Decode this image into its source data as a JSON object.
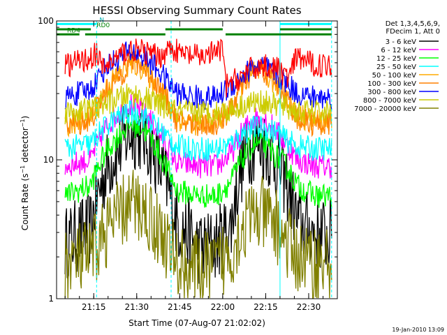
{
  "chart_data": {
    "type": "line",
    "title": "HESSI Observing Summary Count Rates",
    "xlabel": "Start Time (07-Aug-07 21:02:02)",
    "ylabel": "Count Rate (s⁻¹ detector⁻¹)",
    "ylabel_parts": {
      "main": "Count Rate (s",
      "sup1": "−1",
      "mid": " detector",
      "sup2": "−1",
      "end": ")"
    },
    "footer": "19-Jan-2010 13:09",
    "y_scale": "log",
    "ylim": [
      1,
      100
    ],
    "xlim": [
      "21:02:02",
      "22:40:00"
    ],
    "x_ticks": [
      "21:15",
      "21:30",
      "21:45",
      "22:00",
      "22:15",
      "22:30"
    ],
    "y_ticks": [
      "1",
      "10",
      "100"
    ],
    "grid": false,
    "legend_placement": "right",
    "legend_header": [
      "Det 1,3,4,5,6,9,",
      "FDecim 1, Att 0"
    ],
    "series": [
      {
        "name": "3 - 6 keV",
        "color": "#000000",
        "x": [
          "21:05",
          "21:14",
          "21:20",
          "21:25",
          "21:28",
          "21:32",
          "21:36",
          "21:40",
          "21:44",
          "21:52",
          "21:58",
          "22:03",
          "22:08",
          "22:11",
          "22:14",
          "22:18",
          "22:22",
          "22:26",
          "22:32",
          "22:38"
        ],
        "y": [
          2.5,
          3.2,
          9,
          13,
          16,
          15,
          11,
          7,
          3.5,
          2.3,
          2.5,
          3.3,
          11,
          13,
          13,
          10,
          7,
          3.5,
          3.0,
          2.8
        ]
      },
      {
        "name": "6 - 12 keV",
        "color": "#ff00ff",
        "x": [
          "21:05",
          "21:14",
          "21:20",
          "21:25",
          "21:28",
          "21:32",
          "21:36",
          "21:40",
          "21:44",
          "21:52",
          "21:58",
          "22:03",
          "22:08",
          "22:11",
          "22:14",
          "22:18",
          "22:22",
          "22:26",
          "22:32",
          "22:38"
        ],
        "y": [
          9,
          10,
          18,
          23,
          25,
          22,
          18,
          13,
          9.5,
          9,
          9,
          11,
          17,
          20,
          20,
          17,
          13,
          10,
          9,
          9
        ]
      },
      {
        "name": "12 - 25 keV",
        "color": "#00ff00",
        "x": [
          "21:05",
          "21:14",
          "21:20",
          "21:25",
          "21:28",
          "21:32",
          "21:36",
          "21:40",
          "21:44",
          "21:52",
          "21:58",
          "22:03",
          "22:08",
          "22:11",
          "22:14",
          "22:18",
          "22:22",
          "22:26",
          "22:32",
          "22:38"
        ],
        "y": [
          5.5,
          6.5,
          12,
          16,
          18,
          17,
          13,
          9,
          6,
          5.5,
          5.5,
          7,
          11,
          13,
          13,
          11,
          9,
          6.5,
          5.5,
          5.5
        ]
      },
      {
        "name": "25 - 50 keV",
        "color": "#00ffff",
        "x": [
          "21:05",
          "21:14",
          "21:20",
          "21:25",
          "21:28",
          "21:32",
          "21:36",
          "21:40",
          "21:44",
          "21:52",
          "21:58",
          "22:03",
          "22:08",
          "22:11",
          "22:14",
          "22:18",
          "22:22",
          "22:26",
          "22:32",
          "22:38"
        ],
        "y": [
          12,
          13,
          18,
          21,
          22,
          21,
          18,
          15,
          12.5,
          12,
          12,
          13,
          16,
          17,
          17,
          16,
          14,
          12.5,
          12,
          12
        ]
      },
      {
        "name": "50 - 100 keV",
        "color": "#ffaa00",
        "x": [
          "21:05",
          "21:14",
          "21:20",
          "21:25",
          "21:28",
          "21:32",
          "21:36",
          "21:40",
          "21:44",
          "21:52",
          "21:58",
          "22:03",
          "22:08",
          "22:11",
          "22:14",
          "22:18",
          "22:22",
          "22:26",
          "22:32",
          "22:38"
        ],
        "y": [
          18,
          20,
          34,
          44,
          50,
          46,
          36,
          28,
          20,
          18,
          19,
          23,
          38,
          42,
          42,
          36,
          28,
          21,
          19,
          19
        ]
      },
      {
        "name": "100 - 300 keV",
        "color": "#ff8000",
        "x": [
          "21:05",
          "21:14",
          "21:20",
          "21:25",
          "21:28",
          "21:32",
          "21:36",
          "21:40",
          "21:44",
          "21:52",
          "21:58",
          "22:03",
          "22:08",
          "22:11",
          "22:14",
          "22:18",
          "22:22",
          "22:26",
          "22:32",
          "22:38"
        ],
        "y": [
          18,
          19,
          32,
          42,
          52,
          48,
          38,
          28,
          19,
          18,
          18,
          23,
          37,
          43,
          43,
          38,
          28,
          20,
          18,
          18
        ]
      },
      {
        "name": "300 - 800 keV",
        "color": "#0000ff",
        "x": [
          "21:05",
          "21:14",
          "21:20",
          "21:25",
          "21:28",
          "21:32",
          "21:36",
          "21:40",
          "21:44",
          "21:52",
          "21:58",
          "22:03",
          "22:08",
          "22:11",
          "22:14",
          "22:18",
          "22:22",
          "22:26",
          "22:32",
          "22:38"
        ],
        "y": [
          28,
          32,
          48,
          56,
          60,
          56,
          48,
          38,
          30,
          28,
          28,
          34,
          42,
          47,
          47,
          42,
          36,
          30,
          28,
          28
        ]
      },
      {
        "name": "800 - 7000 keV",
        "color": "#cccc00",
        "x": [
          "21:05",
          "21:14",
          "21:20",
          "21:25",
          "21:28",
          "21:32",
          "21:36",
          "21:40",
          "21:44",
          "21:52",
          "21:58",
          "22:03",
          "22:08",
          "22:11",
          "22:14",
          "22:18",
          "22:22",
          "22:26",
          "22:32",
          "22:38"
        ],
        "y": [
          22,
          23,
          26,
          28,
          30,
          28,
          26,
          24,
          22,
          22,
          22,
          23,
          25,
          26,
          26,
          25,
          24,
          22,
          22,
          22
        ]
      },
      {
        "name": "7000 - 20000 keV",
        "color": "#808000",
        "x": [
          "21:05",
          "21:14",
          "21:20",
          "21:25",
          "21:28",
          "21:32",
          "21:36",
          "21:40",
          "21:44",
          "21:52",
          "21:58",
          "22:03",
          "22:08",
          "22:11",
          "22:14",
          "22:18",
          "22:22",
          "22:26",
          "22:32",
          "22:38"
        ],
        "y": [
          1.8,
          2.0,
          3.2,
          4.2,
          4.8,
          4.5,
          3.5,
          2.6,
          1.8,
          1.6,
          1.7,
          2.2,
          3.5,
          4.0,
          4.0,
          3.5,
          2.6,
          2.0,
          1.8,
          1.8
        ]
      },
      {
        "name": "",
        "color": "#ff0000",
        "x": [
          "21:05",
          "21:12",
          "21:16",
          "21:18",
          "21:25",
          "21:28",
          "21:32",
          "21:38",
          "21:42",
          "21:45",
          "21:52",
          "21:58",
          "22:00",
          "22:01",
          "22:05",
          "22:10",
          "22:15",
          "22:20",
          "22:23",
          "22:26",
          "22:32",
          "22:38"
        ],
        "y": [
          48,
          52,
          58,
          45,
          58,
          62,
          60,
          55,
          65,
          58,
          55,
          60,
          62,
          34,
          38,
          45,
          48,
          44,
          38,
          55,
          48,
          48
        ]
      }
    ],
    "annotations": {
      "flags": [
        {
          "label": "N",
          "color": "#00ffff",
          "y": 95,
          "segments": [
            [
              "21:02",
              "21:16"
            ],
            [
              "22:20",
              "22:38"
            ]
          ]
        },
        {
          "label": "RD0",
          "color": "#008000",
          "y": 87,
          "segments": [
            [
              "21:02",
              "21:14"
            ],
            [
              "21:40",
              "22:00"
            ],
            [
              "22:20",
              "22:38"
            ]
          ]
        },
        {
          "label": "RD4",
          "color": "#008000",
          "y": 80,
          "segments": [
            [
              "21:02",
              "21:10"
            ],
            [
              "21:12",
              "21:40"
            ],
            [
              "22:01",
              "22:20"
            ],
            [
              "22:20",
              "22:38"
            ]
          ]
        }
      ],
      "vlines": [
        {
          "x": "21:16",
          "color": "#00ffff",
          "dashed": true
        },
        {
          "x": "21:42",
          "color": "#00ffff",
          "dashed": true
        },
        {
          "x": "22:20",
          "color": "#00ffff",
          "dashed": false
        },
        {
          "x": "22:38",
          "color": "#00ffff",
          "dashed": true
        }
      ]
    }
  }
}
